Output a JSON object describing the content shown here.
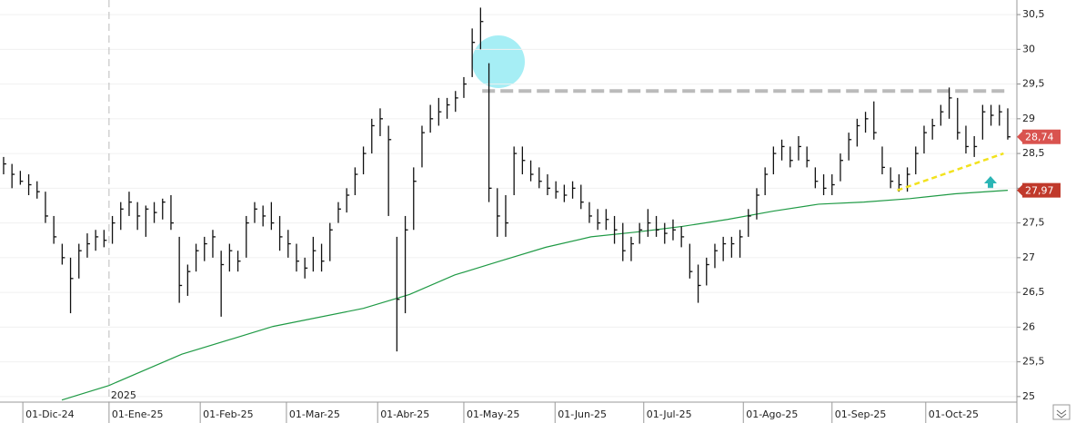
{
  "chart_data": {
    "type": "ohlc",
    "xlim": [
      -0.43,
      121.09
    ],
    "ylim": [
      24.92,
      30.71
    ],
    "xticks": [
      {
        "value": 2.3,
        "label": "01-Dic-24"
      },
      {
        "value": 12.6,
        "label": "01-Ene-25"
      },
      {
        "value": 23.5,
        "label": "01-Feb-25"
      },
      {
        "value": 33.8,
        "label": "01-Mar-25"
      },
      {
        "value": 44.7,
        "label": "01-Abr-25"
      },
      {
        "value": 55,
        "label": "01-May-25"
      },
      {
        "value": 65.9,
        "label": "01-Jun-25"
      },
      {
        "value": 76.5,
        "label": "01-Jul-25"
      },
      {
        "value": 88.4,
        "label": "01-Ago-25"
      },
      {
        "value": 99,
        "label": "01-Sep-25"
      },
      {
        "value": 110.2,
        "label": "01-Oct-25"
      }
    ],
    "yticks": [
      {
        "value": 25,
        "label": "25"
      },
      {
        "value": 25.5,
        "label": "25,5"
      },
      26,
      {
        "value": 26.5,
        "label": "26,5"
      },
      27,
      {
        "value": 27.5,
        "label": "27,5"
      },
      28,
      {
        "value": 28.5,
        "label": "28,5"
      },
      29,
      {
        "value": 29.5,
        "label": "29,5"
      },
      30,
      {
        "value": 30.5,
        "label": "30,5"
      }
    ],
    "year_marker": {
      "x": 12.6,
      "label": "2025"
    },
    "color": "#111111",
    "x": [
      0,
      1,
      2,
      3,
      4,
      5,
      6,
      7,
      8,
      9,
      10,
      11,
      12,
      13,
      14,
      15,
      16,
      17,
      18,
      19,
      20,
      21,
      22,
      23,
      24,
      25,
      26,
      27,
      28,
      29,
      30,
      31,
      32,
      33,
      34,
      35,
      36,
      37,
      38,
      39,
      40,
      41,
      42,
      43,
      44,
      45,
      46,
      47,
      48,
      49,
      50,
      51,
      52,
      53,
      54,
      55,
      56,
      57,
      58,
      59,
      60,
      61,
      62,
      63,
      64,
      65,
      66,
      67,
      68,
      69,
      70,
      71,
      72,
      73,
      74,
      75,
      76,
      77,
      78,
      79,
      80,
      81,
      82,
      83,
      84,
      85,
      86,
      87,
      88,
      89,
      90,
      91,
      92,
      93,
      94,
      95,
      96,
      97,
      98,
      99,
      100,
      101,
      102,
      103,
      104,
      105,
      106,
      107,
      108,
      109,
      110,
      111,
      112,
      113,
      114,
      115,
      116,
      117,
      118,
      119,
      120
    ],
    "high": [
      28.45,
      28.35,
      28.25,
      28.2,
      28.1,
      27.95,
      27.6,
      27.2,
      27.0,
      27.2,
      27.35,
      27.4,
      27.4,
      27.6,
      27.8,
      27.95,
      27.8,
      27.75,
      27.8,
      27.85,
      27.9,
      27.3,
      26.9,
      27.2,
      27.3,
      27.4,
      27.1,
      27.2,
      27.1,
      27.6,
      27.8,
      27.75,
      27.8,
      27.6,
      27.4,
      27.2,
      27.0,
      27.3,
      27.2,
      27.5,
      27.8,
      28.0,
      28.3,
      28.6,
      29.0,
      29.15,
      28.9,
      27.3,
      27.6,
      28.3,
      28.9,
      29.2,
      29.3,
      29.3,
      29.4,
      29.6,
      30.3,
      30.6,
      29.8,
      28.0,
      27.9,
      28.6,
      28.6,
      28.4,
      28.3,
      28.2,
      28.1,
      28.05,
      28.1,
      28.05,
      27.8,
      27.7,
      27.7,
      27.6,
      27.5,
      27.3,
      27.5,
      27.7,
      27.6,
      27.5,
      27.55,
      27.45,
      27.2,
      26.9,
      27.0,
      27.2,
      27.3,
      27.3,
      27.4,
      27.7,
      28.0,
      28.3,
      28.6,
      28.7,
      28.6,
      28.75,
      28.6,
      28.3,
      28.2,
      28.2,
      28.5,
      28.8,
      29.0,
      29.1,
      29.25,
      28.6,
      28.3,
      28.2,
      28.3,
      28.6,
      28.9,
      29.0,
      29.2,
      29.45,
      29.3,
      28.9,
      28.75,
      29.2,
      29.2,
      29.2,
      29.15
    ],
    "low": [
      28.2,
      28.0,
      28.05,
      27.9,
      27.85,
      27.5,
      27.2,
      26.9,
      26.2,
      26.7,
      27.0,
      27.1,
      27.15,
      27.2,
      27.4,
      27.6,
      27.4,
      27.3,
      27.5,
      27.55,
      27.4,
      26.35,
      26.45,
      26.8,
      26.95,
      27.0,
      26.15,
      26.8,
      26.8,
      27.0,
      27.5,
      27.45,
      27.4,
      27.1,
      27.0,
      26.8,
      26.7,
      26.8,
      26.8,
      26.95,
      27.5,
      27.65,
      27.9,
      28.2,
      28.5,
      28.75,
      27.6,
      25.65,
      26.2,
      27.4,
      28.3,
      28.8,
      28.9,
      29.0,
      29.1,
      29.3,
      29.6,
      30.0,
      27.8,
      27.3,
      27.3,
      27.9,
      28.2,
      28.1,
      28.0,
      27.9,
      27.85,
      27.8,
      27.85,
      27.7,
      27.5,
      27.4,
      27.4,
      27.2,
      26.95,
      26.95,
      27.2,
      27.3,
      27.3,
      27.2,
      27.25,
      27.15,
      26.7,
      26.35,
      26.6,
      26.85,
      26.95,
      27.0,
      27.0,
      27.3,
      27.55,
      27.9,
      28.2,
      28.4,
      28.3,
      28.4,
      28.3,
      28.0,
      27.9,
      27.9,
      28.1,
      28.4,
      28.6,
      28.8,
      28.7,
      28.2,
      28.0,
      27.95,
      27.95,
      28.2,
      28.5,
      28.7,
      28.9,
      29.0,
      28.7,
      28.5,
      28.45,
      28.7,
      28.9,
      28.9,
      28.7
    ],
    "close": [
      28.35,
      28.2,
      28.1,
      28.05,
      27.95,
      27.6,
      27.3,
      27.0,
      26.7,
      27.1,
      27.2,
      27.3,
      27.25,
      27.5,
      27.7,
      27.8,
      27.6,
      27.7,
      27.65,
      27.8,
      27.5,
      26.6,
      26.8,
      27.1,
      27.2,
      27.3,
      26.9,
      27.1,
      26.95,
      27.5,
      27.7,
      27.6,
      27.5,
      27.3,
      27.2,
      26.95,
      26.85,
      27.1,
      26.95,
      27.4,
      27.7,
      27.9,
      28.2,
      28.5,
      28.9,
      29.0,
      28.7,
      26.4,
      27.4,
      28.1,
      28.8,
      29.0,
      29.1,
      29.2,
      29.3,
      29.5,
      30.1,
      30.4,
      28.0,
      27.6,
      27.5,
      28.5,
      28.4,
      28.2,
      28.1,
      28.0,
      27.95,
      27.9,
      28.0,
      27.8,
      27.6,
      27.5,
      27.55,
      27.4,
      27.1,
      27.2,
      27.4,
      27.5,
      27.4,
      27.35,
      27.4,
      27.3,
      26.8,
      26.6,
      26.9,
      27.1,
      27.2,
      27.2,
      27.3,
      27.6,
      27.9,
      28.2,
      28.5,
      28.6,
      28.4,
      28.6,
      28.4,
      28.1,
      28.0,
      28.05,
      28.4,
      28.7,
      28.9,
      29.0,
      28.8,
      28.3,
      28.1,
      28.05,
      28.2,
      28.5,
      28.8,
      28.9,
      29.1,
      29.3,
      28.8,
      28.6,
      28.6,
      29.1,
      29.05,
      29.1,
      28.74
    ],
    "moving_average": {
      "color": "#1f9a45",
      "x": [
        6.96,
        12.6,
        21.3,
        32.2,
        43,
        48.5,
        53.9,
        59.3,
        64.8,
        70.2,
        75.7,
        81.1,
        86.5,
        92,
        97.4,
        102.8,
        108.3,
        113.7,
        120
      ],
      "values": [
        24.95,
        25.16,
        25.61,
        26.01,
        26.27,
        26.47,
        26.75,
        26.95,
        27.15,
        27.3,
        27.37,
        27.45,
        27.55,
        27.67,
        27.77,
        27.8,
        27.85,
        27.92,
        27.97
      ]
    },
    "resistance": {
      "value": 29.4,
      "x": [
        57.2,
        120
      ],
      "color": "#bbbbbb"
    },
    "trendline": {
      "x": [
        106.8,
        119.5
      ],
      "y": [
        27.97,
        28.5
      ],
      "color": "#f2e21e"
    },
    "price_labels": [
      {
        "value": 28.74,
        "label": "28,74",
        "color": "#d9534f"
      },
      {
        "value": 27.97,
        "label": "27,97",
        "color": "#c0392b"
      }
    ]
  }
}
